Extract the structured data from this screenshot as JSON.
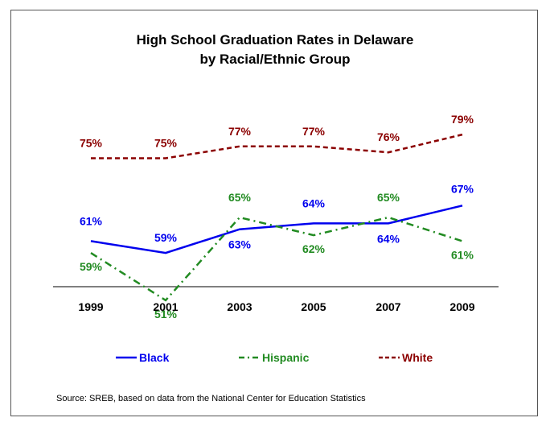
{
  "chart_data": {
    "type": "line",
    "title_line1": "High School Graduation Rates in Delaware",
    "title_line2": "by Racial/Ethnic Group",
    "categories": [
      "1999",
      "2001",
      "2003",
      "2005",
      "2007",
      "2009"
    ],
    "series": [
      {
        "name": "Black",
        "values": [
          61,
          59,
          63,
          64,
          64,
          67
        ],
        "labels": [
          "61%",
          "59%",
          "63%",
          "64%",
          "64%",
          "67%"
        ],
        "color": "#0000ee",
        "style": "solid"
      },
      {
        "name": "Hispanic",
        "values": [
          59,
          51,
          65,
          62,
          65,
          61
        ],
        "labels": [
          "59%",
          "51%",
          "65%",
          "62%",
          "65%",
          "61%"
        ],
        "color": "#228b22",
        "style": "dash-dot"
      },
      {
        "name": "White",
        "values": [
          75,
          75,
          77,
          77,
          76,
          79
        ],
        "labels": [
          "75%",
          "75%",
          "77%",
          "77%",
          "76%",
          "79%"
        ],
        "color": "#8b0000",
        "style": "dashed"
      }
    ],
    "legend_position": "bottom",
    "grid": false
  },
  "source_text": "Source: SREB, based on data from the National Center for Education Statistics"
}
